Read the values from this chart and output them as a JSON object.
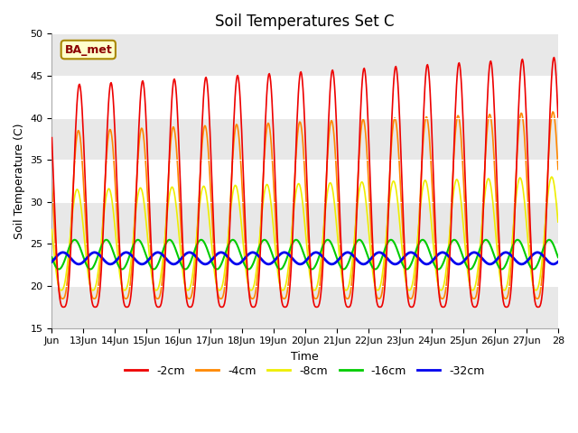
{
  "title": "Soil Temperatures Set C",
  "xlabel": "Time",
  "ylabel": "Soil Temperature (C)",
  "ylim": [
    15,
    50
  ],
  "xlim_start": 12.0,
  "xlim_end": 28.0,
  "xtick_positions": [
    12,
    13,
    14,
    15,
    16,
    17,
    18,
    19,
    20,
    21,
    22,
    23,
    24,
    25,
    26,
    27,
    28
  ],
  "xtick_labels": [
    "Jun",
    "13Jun",
    "14Jun",
    "15Jun",
    "16Jun",
    "17Jun",
    "18Jun",
    "19Jun",
    "20Jun",
    "21Jun",
    "22Jun",
    "23Jun",
    "24Jun",
    "25Jun",
    "26Jun",
    "27Jun",
    "28"
  ],
  "ytick_positions": [
    15,
    20,
    25,
    30,
    35,
    40,
    45,
    50
  ],
  "series": [
    {
      "label": "-2cm",
      "color": "#ee0000",
      "lw": 1.2
    },
    {
      "label": "-4cm",
      "color": "#ff8800",
      "lw": 1.2
    },
    {
      "label": "-8cm",
      "color": "#eeee00",
      "lw": 1.2
    },
    {
      "label": "-16cm",
      "color": "#00cc00",
      "lw": 1.5
    },
    {
      "label": "-32cm",
      "color": "#0000ee",
      "lw": 2.0
    }
  ],
  "annotation_text": "BA_met",
  "bg_color": "#ffffff",
  "title_fontsize": 12,
  "label_fontsize": 9,
  "tick_fontsize": 8,
  "band_colors": [
    "#e8e8e8",
    "#ffffff"
  ]
}
